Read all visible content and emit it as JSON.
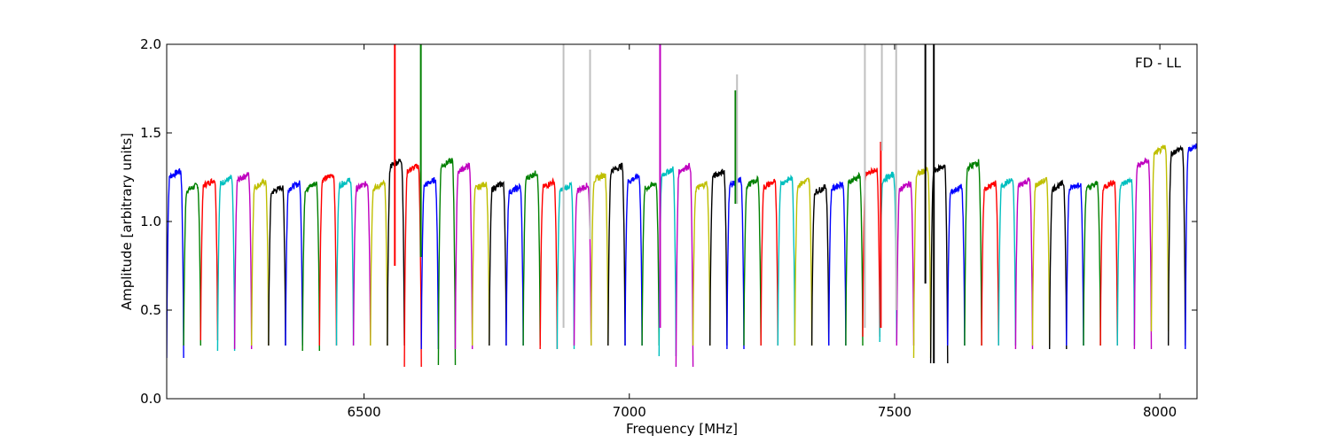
{
  "chart_data": {
    "type": "line",
    "title": "",
    "xlabel": "Frequency [MHz]",
    "ylabel": "Amplitude [arbitrary units]",
    "xlim": [
      6128,
      8070
    ],
    "ylim": [
      0.0,
      2.0
    ],
    "xticks": [
      6500,
      7000,
      7500,
      8000
    ],
    "yticks": [
      0.0,
      0.5,
      1.0,
      1.5,
      2.0
    ],
    "xtick_labels": [
      "6500",
      "7000",
      "7500",
      "8000"
    ],
    "ytick_labels": [
      "0.0",
      "0.5",
      "1.0",
      "1.5",
      "2.0"
    ],
    "annotation": "FD - LL",
    "grid": false,
    "legend": "none",
    "channel_width_mhz": 32,
    "first_channel_start_mhz": 6128,
    "color_cycle": [
      "#0000ff",
      "#008000",
      "#ff0000",
      "#00bfbf",
      "#bf00bf",
      "#bfbf00",
      "#000000"
    ],
    "flagged_color": "#c0c0c0",
    "series": [
      {
        "color": "#0000ff",
        "plateau": 1.27,
        "min": 0.23
      },
      {
        "color": "#008000",
        "plateau": 1.19,
        "min": 0.3
      },
      {
        "color": "#ff0000",
        "plateau": 1.22,
        "min": 0.33
      },
      {
        "color": "#00bfbf",
        "plateau": 1.23,
        "min": 0.27
      },
      {
        "color": "#bf00bf",
        "plateau": 1.25,
        "min": 0.28
      },
      {
        "color": "#bfbf00",
        "plateau": 1.21,
        "min": 0.3
      },
      {
        "color": "#000000",
        "plateau": 1.18,
        "min": 0.3
      },
      {
        "color": "#0000ff",
        "plateau": 1.2,
        "min": 0.3
      },
      {
        "color": "#008000",
        "plateau": 1.2,
        "min": 0.27
      },
      {
        "color": "#ff0000",
        "plateau": 1.25,
        "min": 0.3
      },
      {
        "color": "#00bfbf",
        "plateau": 1.22,
        "min": 0.3
      },
      {
        "color": "#bf00bf",
        "plateau": 1.2,
        "min": 0.3
      },
      {
        "color": "#bfbf00",
        "plateau": 1.2,
        "min": 0.3
      },
      {
        "color": "#000000",
        "plateau": 1.33,
        "min": 0.3
      },
      {
        "color": "#ff0000",
        "plateau": 1.3,
        "min": 0.18
      },
      {
        "color": "#0000ff",
        "plateau": 1.22,
        "min": 0.28
      },
      {
        "color": "#008000",
        "plateau": 1.33,
        "min": 0.19
      },
      {
        "color": "#bf00bf",
        "plateau": 1.3,
        "min": 0.28
      },
      {
        "color": "#bfbf00",
        "plateau": 1.2,
        "min": 0.3
      },
      {
        "color": "#000000",
        "plateau": 1.2,
        "min": 0.3
      },
      {
        "color": "#0000ff",
        "plateau": 1.18,
        "min": 0.3
      },
      {
        "color": "#008000",
        "plateau": 1.26,
        "min": 0.3
      },
      {
        "color": "#ff0000",
        "plateau": 1.21,
        "min": 0.28
      },
      {
        "color": "#00bfbf",
        "plateau": 1.19,
        "min": 0.28
      },
      {
        "color": "#bf00bf",
        "plateau": 1.19,
        "min": 0.3
      },
      {
        "color": "#bfbf00",
        "plateau": 1.25,
        "min": 0.3
      },
      {
        "color": "#000000",
        "plateau": 1.3,
        "min": 0.3
      },
      {
        "color": "#0000ff",
        "plateau": 1.24,
        "min": 0.3
      },
      {
        "color": "#008000",
        "plateau": 1.2,
        "min": 0.3
      },
      {
        "color": "#00bfbf",
        "plateau": 1.28,
        "min": 0.24
      },
      {
        "color": "#bf00bf",
        "plateau": 1.3,
        "min": 0.18
      },
      {
        "color": "#bfbf00",
        "plateau": 1.2,
        "min": 0.3
      },
      {
        "color": "#000000",
        "plateau": 1.27,
        "min": 0.3
      },
      {
        "color": "#0000ff",
        "plateau": 1.22,
        "min": 0.28
      },
      {
        "color": "#008000",
        "plateau": 1.22,
        "min": 0.3
      },
      {
        "color": "#ff0000",
        "plateau": 1.21,
        "min": 0.3
      },
      {
        "color": "#00bfbf",
        "plateau": 1.23,
        "min": 0.3
      },
      {
        "color": "#bfbf00",
        "plateau": 1.22,
        "min": 0.3
      },
      {
        "color": "#000000",
        "plateau": 1.18,
        "min": 0.3
      },
      {
        "color": "#0000ff",
        "plateau": 1.2,
        "min": 0.3
      },
      {
        "color": "#008000",
        "plateau": 1.24,
        "min": 0.3
      },
      {
        "color": "#ff0000",
        "plateau": 1.28,
        "min": 0.35
      },
      {
        "color": "#00bfbf",
        "plateau": 1.25,
        "min": 0.32
      },
      {
        "color": "#bf00bf",
        "plateau": 1.2,
        "min": 0.3
      },
      {
        "color": "#bfbf00",
        "plateau": 1.28,
        "min": 0.23
      },
      {
        "color": "#000000",
        "plateau": 1.3,
        "min": 0.2
      },
      {
        "color": "#0000ff",
        "plateau": 1.18,
        "min": 0.3
      },
      {
        "color": "#008000",
        "plateau": 1.32,
        "min": 0.3
      },
      {
        "color": "#ff0000",
        "plateau": 1.2,
        "min": 0.3
      },
      {
        "color": "#00bfbf",
        "plateau": 1.22,
        "min": 0.3
      },
      {
        "color": "#bf00bf",
        "plateau": 1.22,
        "min": 0.28
      },
      {
        "color": "#bfbf00",
        "plateau": 1.22,
        "min": 0.3
      },
      {
        "color": "#000000",
        "plateau": 1.2,
        "min": 0.28
      },
      {
        "color": "#0000ff",
        "plateau": 1.2,
        "min": 0.3
      },
      {
        "color": "#008000",
        "plateau": 1.2,
        "min": 0.3
      },
      {
        "color": "#ff0000",
        "plateau": 1.21,
        "min": 0.3
      },
      {
        "color": "#00bfbf",
        "plateau": 1.22,
        "min": 0.3
      },
      {
        "color": "#bf00bf",
        "plateau": 1.33,
        "min": 0.28
      },
      {
        "color": "#bfbf00",
        "plateau": 1.4,
        "min": 0.38
      },
      {
        "color": "#000000",
        "plateau": 1.4,
        "min": 0.3
      },
      {
        "color": "#0000ff",
        "plateau": 1.42,
        "min": 0.28
      }
    ],
    "spikes": [
      {
        "x": 6558,
        "y_from": 0.75,
        "y_to": 2.0,
        "color": "#ff0000"
      },
      {
        "x": 6607,
        "y_from": 0.8,
        "y_to": 2.0,
        "color": "#008000"
      },
      {
        "x": 6876,
        "y_from": 0.4,
        "y_to": 2.0,
        "color": "#c0c0c0"
      },
      {
        "x": 6926,
        "y_from": 0.9,
        "y_to": 1.97,
        "color": "#c0c0c0"
      },
      {
        "x": 7058,
        "y_from": 0.4,
        "y_to": 2.0,
        "color": "#bf00bf"
      },
      {
        "x": 7200,
        "y_from": 1.1,
        "y_to": 1.74,
        "color": "#008000"
      },
      {
        "x": 7203,
        "y_from": 1.1,
        "y_to": 1.83,
        "color": "#c0c0c0"
      },
      {
        "x": 7444,
        "y_from": 0.4,
        "y_to": 2.0,
        "color": "#c0c0c0"
      },
      {
        "x": 7474,
        "y_from": 0.4,
        "y_to": 1.45,
        "color": "#ff0000"
      },
      {
        "x": 7476,
        "y_from": 1.4,
        "y_to": 2.0,
        "color": "#c0c0c0"
      },
      {
        "x": 7503,
        "y_from": 0.5,
        "y_to": 2.0,
        "color": "#c0c0c0"
      },
      {
        "x": 7558,
        "y_from": 0.65,
        "y_to": 2.0,
        "color": "#000000"
      },
      {
        "x": 7574,
        "y_from": 0.2,
        "y_to": 2.0,
        "color": "#000000"
      }
    ]
  }
}
